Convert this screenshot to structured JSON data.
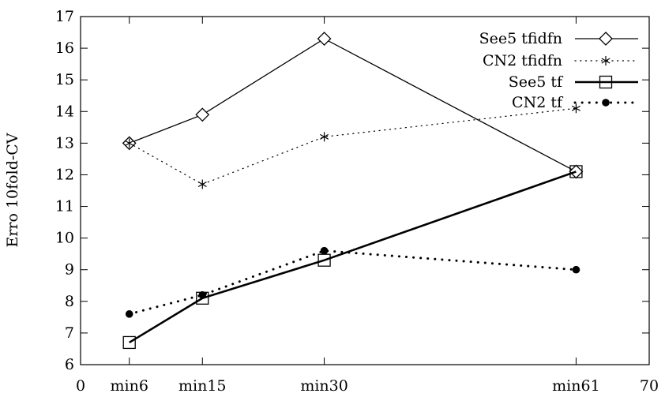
{
  "chart_data": {
    "type": "line",
    "title": "",
    "xlabel": "",
    "ylabel": "Erro 10fold-CV",
    "xlim": [
      0,
      70
    ],
    "ylim": [
      6,
      17
    ],
    "x_ticks": [
      {
        "value": 0,
        "label": "0"
      },
      {
        "value": 6,
        "label": "min6"
      },
      {
        "value": 15,
        "label": "min15"
      },
      {
        "value": 30,
        "label": "min30"
      },
      {
        "value": 61,
        "label": "min61"
      },
      {
        "value": 70,
        "label": "70"
      }
    ],
    "y_ticks": [
      6,
      7,
      8,
      9,
      10,
      11,
      12,
      13,
      14,
      15,
      16,
      17
    ],
    "grid": false,
    "legend_position": "top-right",
    "series": [
      {
        "name": "See5 tfidfn",
        "marker": "diamond",
        "line": "solid-thin",
        "x": [
          6,
          15,
          30,
          61
        ],
        "y": [
          13.0,
          13.9,
          16.3,
          12.1
        ]
      },
      {
        "name": "CN2 tfidfn",
        "marker": "asterisk",
        "line": "dotted-thin",
        "x": [
          6,
          15,
          30,
          61
        ],
        "y": [
          13.0,
          11.7,
          13.2,
          14.1
        ]
      },
      {
        "name": "See5 tf",
        "marker": "square",
        "line": "solid-thick",
        "x": [
          6,
          15,
          30,
          61
        ],
        "y": [
          6.7,
          8.1,
          9.3,
          12.1
        ]
      },
      {
        "name": "CN2 tf",
        "marker": "dot",
        "line": "dotted-thick",
        "x": [
          6,
          15,
          30,
          61
        ],
        "y": [
          7.6,
          8.2,
          9.6,
          9.0
        ]
      }
    ]
  }
}
